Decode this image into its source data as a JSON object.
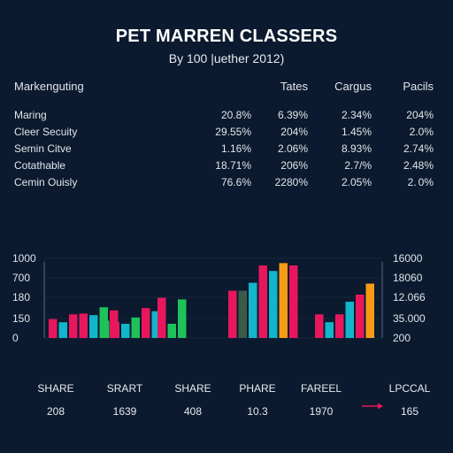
{
  "title": "PET MARREN CLASSERS",
  "subtitle": "By 100 |uether 2012)",
  "table": {
    "headers": [
      "Markenguting",
      "Tates",
      "Cargus",
      "Pacils"
    ],
    "rows": [
      [
        "Maring",
        "20.8%",
        "6.39%",
        "2.34%",
        "204%"
      ],
      [
        "Cleer Secuity",
        "29.55%",
        "204%",
        "1.45%",
        "2.0%"
      ],
      [
        "Semin Citve",
        "1.16%",
        "2.06%",
        "8.93%",
        "2.74%"
      ],
      [
        "Cotathable",
        "18.71%",
        "206%",
        "2.7/%",
        "2.48%"
      ],
      [
        "Cemin Ouisly",
        "76.6%",
        "2280%",
        "2.05%",
        "2. 0%"
      ]
    ]
  },
  "chart_data": {
    "type": "bar",
    "left_axis_ticks": [
      "1000",
      "700",
      "180",
      "150",
      "0"
    ],
    "right_axis_ticks": [
      "16000",
      "18060",
      "12.066",
      "35.000",
      "200"
    ],
    "ylim": [
      0,
      1100
    ],
    "groups": [
      {
        "values": [
          240,
          200,
          300,
          310,
          290,
          390,
          350
        ],
        "colors": [
          "#e8175d",
          "#12b5c9",
          "#e8175d",
          "#e8175d",
          "#12b5c9",
          "#1fc15a",
          "#e8175d"
        ]
      },
      {
        "values": [
          220,
          200,
          180,
          260,
          380,
          340
        ],
        "colors": [
          "#1fc15a",
          "#e8175d",
          "#12b5c9",
          "#1fc15a",
          "#e8175d",
          "#12b5c9"
        ]
      },
      {
        "values": [
          510,
          180,
          490
        ],
        "colors": [
          "#e8175d",
          "#1fc15a",
          "#1fc15a"
        ]
      },
      {
        "values": [
          600,
          600,
          700,
          920,
          850,
          950,
          920
        ],
        "colors": [
          "#e8175d",
          "#3a5a4a",
          "#12b5c9",
          "#e8175d",
          "#12b5c9",
          "#f59b16",
          "#e8175d"
        ]
      },
      {
        "values": [
          300,
          200,
          300,
          460,
          550,
          690
        ],
        "colors": [
          "#e8175d",
          "#12b5c9",
          "#e8175d",
          "#12b5c9",
          "#e8175d",
          "#f59b16"
        ]
      }
    ]
  },
  "footer": {
    "items": [
      {
        "label": "SHARE",
        "value": "208"
      },
      {
        "label": "SRART",
        "value": "1639"
      },
      {
        "label": "SHARE",
        "value": "408"
      },
      {
        "label": "PHARE",
        "value": "10.3"
      },
      {
        "label": "FAREEL",
        "value": "1970"
      },
      {
        "label": "LPCCAL",
        "value": "165"
      }
    ],
    "arrow_color": "#e8175d"
  }
}
